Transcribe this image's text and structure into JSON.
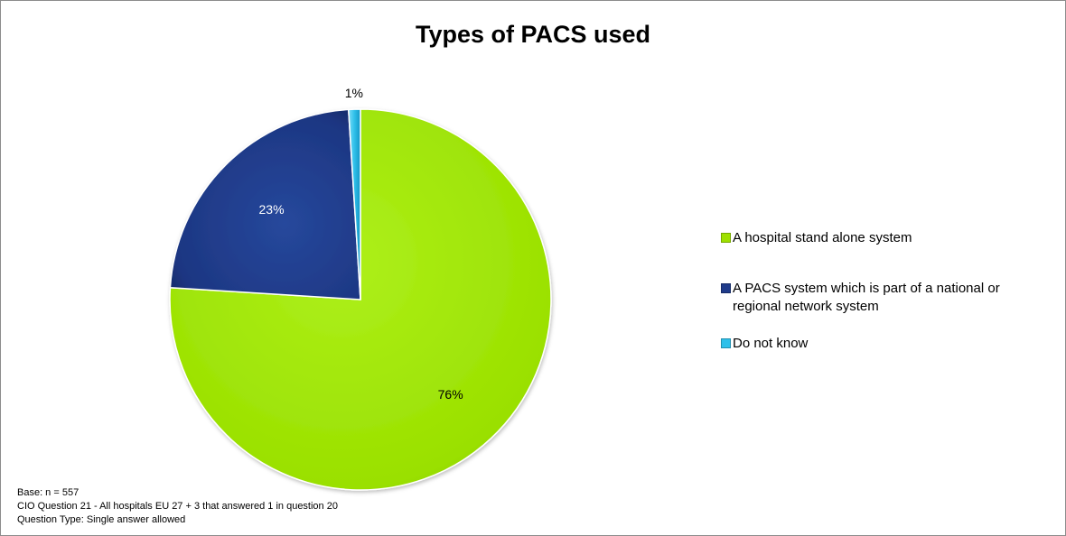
{
  "chart_data": {
    "type": "pie",
    "title": "Types of PACS used",
    "slices": [
      {
        "label": "A hospital stand alone system",
        "value": 76,
        "data_label": "76%",
        "color": "#9ee000"
      },
      {
        "label": "A PACS system which is part of a national or regional network system",
        "value": 23,
        "data_label": "23%",
        "color": "#1f3b8a"
      },
      {
        "label": "Do not know",
        "value": 1,
        "data_label": "1%",
        "color": "#2ec0ea"
      }
    ],
    "legend_position": "right"
  },
  "footnote": {
    "line1": "Base: n = 557",
    "line2": "CIO Question 21 - All hospitals EU 27 + 3  that answered 1 in question 20",
    "line3": "Question Type: Single answer allowed"
  }
}
